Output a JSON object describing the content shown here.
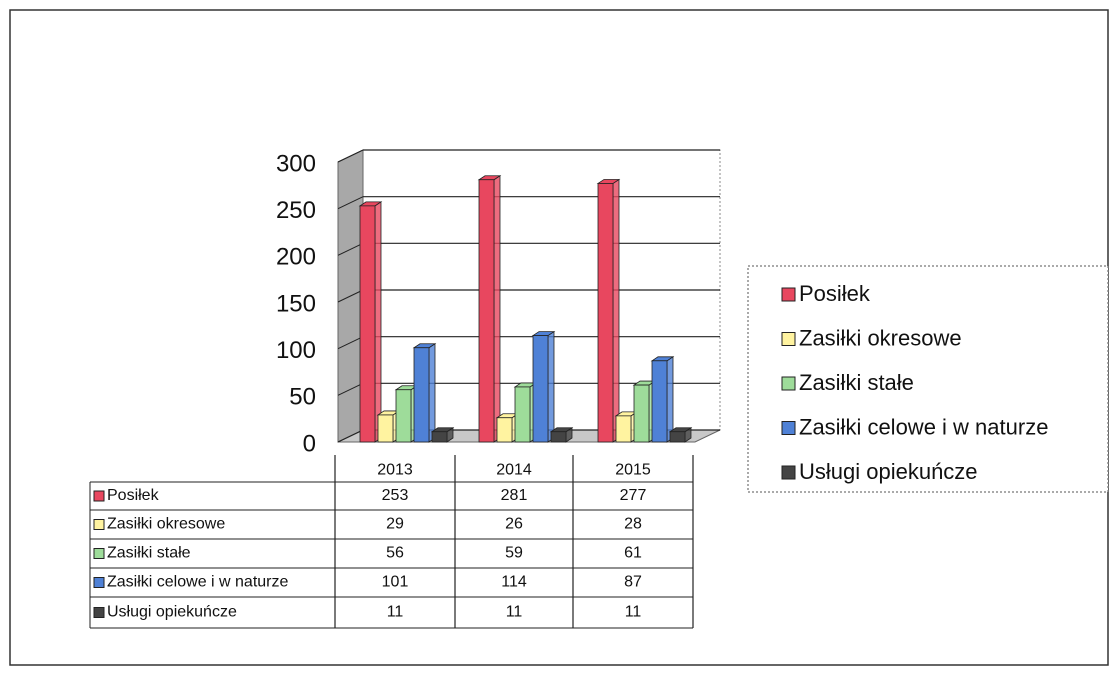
{
  "chart_data": {
    "type": "bar3d",
    "categories": [
      "2013",
      "2014",
      "2015"
    ],
    "series": [
      {
        "name": "Posiłek",
        "color": "#e8475f",
        "values": [
          253,
          281,
          277
        ]
      },
      {
        "name": "Zasiłki okresowe",
        "color": "#fff3a0",
        "values": [
          29,
          26,
          28
        ]
      },
      {
        "name": "Zasiłki stałe",
        "color": "#9edc9a",
        "values": [
          56,
          59,
          61
        ]
      },
      {
        "name": "Zasiłki celowe i w naturze",
        "color": "#4f81d6",
        "values": [
          101,
          114,
          87
        ]
      },
      {
        "name": "Usługi opiekuńcze",
        "color": "#444444",
        "values": [
          11,
          11,
          11
        ]
      }
    ],
    "ylim": [
      0,
      300
    ],
    "yticks": [
      0,
      50,
      100,
      150,
      200,
      250,
      300
    ],
    "grid": true,
    "legend": "right",
    "data_table": true
  }
}
